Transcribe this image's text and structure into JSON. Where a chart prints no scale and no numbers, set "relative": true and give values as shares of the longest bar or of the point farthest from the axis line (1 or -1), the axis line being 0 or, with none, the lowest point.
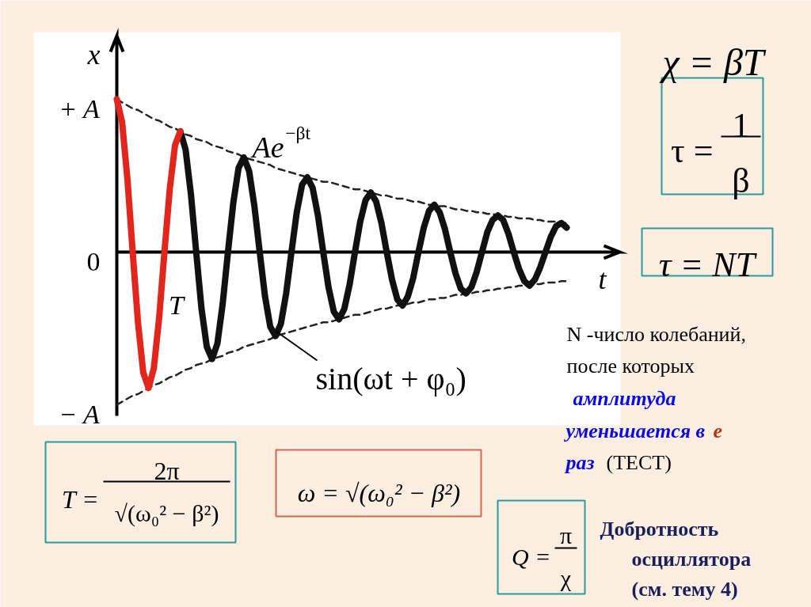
{
  "chart_data": {
    "type": "line",
    "categories": [
      null,
      null,
      null,
      null,
      null,
      null,
      null,
      null,
      null,
      null,
      null,
      null,
      null,
      null,
      null,
      null,
      null,
      null,
      null,
      null,
      null,
      null,
      null,
      null,
      null,
      null,
      null,
      null,
      null,
      null,
      null,
      null,
      null,
      null,
      null,
      null,
      null,
      null,
      null,
      null,
      null,
      null,
      null,
      null,
      null,
      null,
      null,
      null,
      null,
      null,
      null,
      null,
      null,
      null,
      null,
      null,
      null,
      null,
      null,
      null,
      null,
      null,
      null,
      null,
      null,
      null,
      null,
      null,
      null,
      null,
      null,
      null,
      null,
      null,
      null,
      null,
      null,
      null,
      null,
      null,
      null,
      null,
      null,
      null,
      null,
      null
    ],
    "series": [
      {
        "color": "#222222",
        "line_style": "dashed",
        "values": [
          1,
          0.98,
          0.96,
          0.94,
          0.93,
          0.91,
          0.89,
          0.87,
          0.86,
          0.84,
          0.82,
          0.81,
          0.79,
          0.77,
          0.76,
          0.74,
          0.73,
          0.72,
          0.7,
          0.69,
          0.68,
          0.66,
          0.65,
          0.64,
          0.62,
          0.61,
          0.6,
          0.59,
          0.58,
          0.57,
          0.55,
          0.54,
          0.53,
          0.52,
          0.51,
          0.5,
          0.49,
          0.48,
          0.47,
          0.46,
          0.46,
          0.45,
          0.44,
          0.43,
          0.42,
          0.41,
          0.41,
          0.4,
          0.39,
          0.38,
          0.37,
          0.37,
          0.36,
          0.35,
          0.35,
          0.34,
          0.33,
          0.33,
          0.32,
          0.31,
          0.31,
          0.3,
          0.3,
          0.29,
          0.28,
          0.28,
          0.27,
          0.27,
          0.26,
          0.26,
          0.25,
          0.25,
          0.24,
          0.24,
          0.23,
          0.23,
          0.22,
          0.22,
          0.22,
          0.21,
          0.21,
          0.2,
          0.2,
          0.2,
          0.19,
          0.19
        ]
      },
      {
        "color": "#222222",
        "line_style": "dashed",
        "values": [
          -1,
          -0.98,
          -0.96,
          -0.94,
          -0.93,
          -0.91,
          -0.89,
          -0.87,
          -0.86,
          -0.84,
          -0.82,
          -0.81,
          -0.79,
          -0.77,
          -0.76,
          -0.74,
          -0.73,
          -0.72,
          -0.7,
          -0.69,
          -0.68,
          -0.66,
          -0.65,
          -0.64,
          -0.62,
          -0.61,
          -0.6,
          -0.59,
          -0.58,
          -0.57,
          -0.55,
          -0.54,
          -0.53,
          -0.52,
          -0.51,
          -0.5,
          -0.49,
          -0.48,
          -0.47,
          -0.46,
          -0.46,
          -0.45,
          -0.44,
          -0.43,
          -0.42,
          -0.41,
          -0.41,
          -0.4,
          -0.39,
          -0.38,
          -0.37,
          -0.37,
          -0.36,
          -0.35,
          -0.35,
          -0.34,
          -0.33,
          -0.33,
          -0.32,
          -0.31,
          -0.31,
          -0.3,
          -0.3,
          -0.29,
          -0.28,
          -0.28,
          -0.27,
          -0.27,
          -0.26,
          -0.26,
          -0.25,
          -0.25,
          -0.24,
          -0.24,
          -0.23,
          -0.23,
          -0.22,
          -0.22,
          -0.22,
          -0.21,
          -0.21,
          -0.2,
          -0.2,
          -0.2,
          -0.19,
          -0.19
        ]
      },
      {
        "color": "#111111",
        "values": [
          null,
          null,
          null,
          null,
          null,
          null,
          null,
          null,
          null,
          null,
          null,
          null,
          0.79,
          0.67,
          0.38,
          0,
          -0.37,
          -0.62,
          -0.7,
          -0.6,
          -0.34,
          0,
          0.32,
          0.55,
          0.62,
          0.53,
          0.3,
          0,
          -0.29,
          -0.49,
          -0.55,
          -0.47,
          -0.27,
          0,
          0.26,
          0.44,
          0.49,
          0.42,
          0.24,
          0,
          -0.23,
          -0.39,
          -0.44,
          -0.37,
          -0.21,
          0,
          0.2,
          0.34,
          0.39,
          0.33,
          0.19,
          0,
          -0.18,
          -0.31,
          -0.35,
          -0.29,
          -0.17,
          0,
          0.16,
          0.27,
          0.31,
          0.26,
          0.15,
          0,
          -0.14,
          -0.24,
          -0.27,
          -0.23,
          -0.13,
          0,
          0.13,
          0.21,
          0.24,
          0.21,
          0.12,
          0,
          -0.11,
          -0.19,
          -0.22,
          -0.18,
          -0.1,
          0,
          0.1,
          0.17,
          0.19,
          0.16
        ]
      },
      {
        "color": "#e3261c",
        "values": [
          1,
          0.85,
          0.48,
          0,
          -0.46,
          -0.79,
          -0.89,
          -0.76,
          -0.43,
          0,
          0.41,
          0.7,
          0.79,
          null,
          null,
          null,
          null,
          null,
          null,
          null,
          null,
          null,
          null,
          null,
          null,
          null,
          null,
          null,
          null,
          null,
          null,
          null,
          null,
          null,
          null,
          null,
          null,
          null,
          null,
          null,
          null,
          null,
          null,
          null,
          null,
          null,
          null,
          null,
          null,
          null,
          null,
          null,
          null,
          null,
          null,
          null,
          null,
          null,
          null,
          null,
          null,
          null,
          null,
          null,
          null,
          null,
          null,
          null,
          null,
          null,
          null,
          null,
          null,
          null,
          null,
          null,
          null,
          null,
          null,
          null,
          null,
          null,
          null,
          null,
          null,
          null
        ]
      }
    ],
    "relative": true,
    "xlabel": "t",
    "ylabel": "x",
    "marker": "none",
    "line_style": "solid",
    "annotations": [
      "+ A",
      "0",
      "− A",
      "Ae$^{−βt}$",
      "T",
      "sin(ωt + φ₀)",
      "χ = βT",
      "τ =",
      "1",
      "β",
      "τ = NT",
      "N -число колебаний,",
      "после которых",
      "амплитуда",
      "уменьшается в",
      "е",
      "раз",
      "(ТЕСТ)",
      "T =",
      "2π",
      "√(ω₀² − β²)",
      "ω = √(ω₀² − β²)",
      "Q =",
      "π",
      "χ",
      "Добротность",
      "осциллятора",
      "(см. тему 4)"
    ]
  }
}
